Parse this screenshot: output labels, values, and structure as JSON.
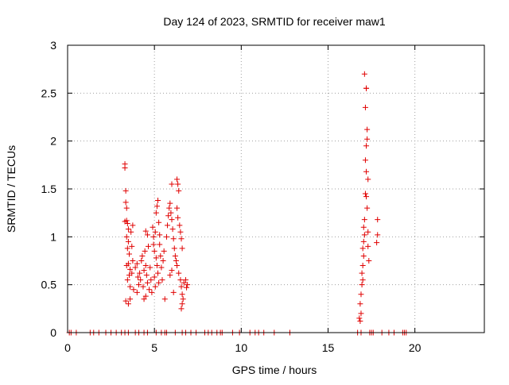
{
  "chart_data": {
    "type": "scatter",
    "title": "Day 124 of 2023, SRMTID for receiver maw1",
    "xlabel": "GPS time / hours",
    "ylabel": "SRMTID / TECUs",
    "xlim": [
      0,
      24
    ],
    "ylim": [
      0,
      3
    ],
    "xticks": [
      0,
      5,
      10,
      15,
      20
    ],
    "xtick_labels": [
      "0",
      "5",
      "10",
      "15",
      "20"
    ],
    "yticks": [
      0,
      0.5,
      1,
      1.5,
      2,
      2.5,
      3
    ],
    "ytick_labels": [
      "0",
      "0.5",
      "1",
      "1.5",
      "2",
      "2.5",
      "3"
    ],
    "grid": true,
    "marker": "+",
    "series": [
      {
        "name": "maw1",
        "color": "#e00000",
        "points": [
          [
            0.1,
            0
          ],
          [
            0.2,
            0
          ],
          [
            0.5,
            0
          ],
          [
            1.3,
            0
          ],
          [
            1.5,
            0
          ],
          [
            1.8,
            0
          ],
          [
            2.2,
            0
          ],
          [
            2.5,
            0
          ],
          [
            2.8,
            0
          ],
          [
            3.1,
            0
          ],
          [
            3.3,
            0
          ],
          [
            3.5,
            0
          ],
          [
            3.9,
            0
          ],
          [
            4.1,
            0
          ],
          [
            4.4,
            0
          ],
          [
            4.6,
            0
          ],
          [
            5.1,
            0
          ],
          [
            5.4,
            0
          ],
          [
            5.6,
            0
          ],
          [
            5.7,
            0
          ],
          [
            6.2,
            0
          ],
          [
            6.6,
            0
          ],
          [
            6.8,
            0
          ],
          [
            7.1,
            0
          ],
          [
            7.4,
            0
          ],
          [
            7.9,
            0
          ],
          [
            8.1,
            0
          ],
          [
            8.3,
            0
          ],
          [
            8.6,
            0
          ],
          [
            8.8,
            0
          ],
          [
            8.9,
            0
          ],
          [
            9.5,
            0
          ],
          [
            9.9,
            0
          ],
          [
            10.5,
            0
          ],
          [
            10.8,
            0
          ],
          [
            11.0,
            0
          ],
          [
            11.3,
            0
          ],
          [
            11.9,
            0
          ],
          [
            12.8,
            0
          ],
          [
            16.7,
            0
          ],
          [
            16.9,
            0
          ],
          [
            17.4,
            0
          ],
          [
            17.5,
            0
          ],
          [
            17.6,
            0
          ],
          [
            18.1,
            0
          ],
          [
            18.5,
            0
          ],
          [
            18.8,
            0
          ],
          [
            19.3,
            0
          ],
          [
            19.4,
            0
          ],
          [
            19.5,
            0
          ],
          [
            3.3,
            1.76
          ],
          [
            3.3,
            1.72
          ],
          [
            3.35,
            1.48
          ],
          [
            3.35,
            1.36
          ],
          [
            3.4,
            1.3
          ],
          [
            3.3,
            1.16
          ],
          [
            3.4,
            1.17
          ],
          [
            3.45,
            1.14
          ],
          [
            3.5,
            1.08
          ],
          [
            3.4,
            1.0
          ],
          [
            3.5,
            0.95
          ],
          [
            3.45,
            0.88
          ],
          [
            3.55,
            0.82
          ],
          [
            3.5,
            0.72
          ],
          [
            3.4,
            0.7
          ],
          [
            3.6,
            0.66
          ],
          [
            3.55,
            0.6
          ],
          [
            3.45,
            0.55
          ],
          [
            3.6,
            0.48
          ],
          [
            3.35,
            0.33
          ],
          [
            3.5,
            0.3
          ],
          [
            3.6,
            0.35
          ],
          [
            3.7,
            0.9
          ],
          [
            3.75,
            0.75
          ],
          [
            3.7,
            0.62
          ],
          [
            3.8,
            0.45
          ],
          [
            3.65,
            1.05
          ],
          [
            3.75,
            1.12
          ],
          [
            3.9,
            0.68
          ],
          [
            4.0,
            0.72
          ],
          [
            4.05,
            0.58
          ],
          [
            4.1,
            0.5
          ],
          [
            4.0,
            0.42
          ],
          [
            4.15,
            0.62
          ],
          [
            4.2,
            0.55
          ],
          [
            4.25,
            0.75
          ],
          [
            4.3,
            0.8
          ],
          [
            4.35,
            0.48
          ],
          [
            4.4,
            0.65
          ],
          [
            4.45,
            0.85
          ],
          [
            4.5,
            0.7
          ],
          [
            4.55,
            0.6
          ],
          [
            4.4,
            0.35
          ],
          [
            4.5,
            0.38
          ],
          [
            4.6,
            0.52
          ],
          [
            4.6,
            1.02
          ],
          [
            4.5,
            1.06
          ],
          [
            4.65,
            0.9
          ],
          [
            4.7,
            0.45
          ],
          [
            4.75,
            0.68
          ],
          [
            4.8,
            0.55
          ],
          [
            4.85,
            0.42
          ],
          [
            4.9,
            1.1
          ],
          [
            4.95,
            1.0
          ],
          [
            4.95,
            0.92
          ],
          [
            5.0,
            0.85
          ],
          [
            5.05,
            1.05
          ],
          [
            5.1,
            0.78
          ],
          [
            5.15,
            0.7
          ],
          [
            5.2,
            0.62
          ],
          [
            5.1,
            1.25
          ],
          [
            5.15,
            1.32
          ],
          [
            5.2,
            1.38
          ],
          [
            5.25,
            1.15
          ],
          [
            5.0,
            0.58
          ],
          [
            5.05,
            0.48
          ],
          [
            5.3,
            0.92
          ],
          [
            5.35,
            0.8
          ],
          [
            5.4,
            0.68
          ],
          [
            5.45,
            0.55
          ],
          [
            5.5,
            0.75
          ],
          [
            5.55,
            0.85
          ],
          [
            5.3,
            1.02
          ],
          [
            5.25,
            0.52
          ],
          [
            5.6,
            0.35
          ],
          [
            5.7,
            1.0
          ],
          [
            5.75,
            1.12
          ],
          [
            5.8,
            1.22
          ],
          [
            5.85,
            1.3
          ],
          [
            5.9,
            1.35
          ],
          [
            5.95,
            1.25
          ],
          [
            6.0,
            1.18
          ],
          [
            6.05,
            1.08
          ],
          [
            6.1,
            0.98
          ],
          [
            6.15,
            0.88
          ],
          [
            6.2,
            0.8
          ],
          [
            6.25,
            0.75
          ],
          [
            6.0,
            1.55
          ],
          [
            6.3,
            1.6
          ],
          [
            6.35,
            1.55
          ],
          [
            6.4,
            1.48
          ],
          [
            6.3,
            1.3
          ],
          [
            6.35,
            1.2
          ],
          [
            6.45,
            1.12
          ],
          [
            6.5,
            1.05
          ],
          [
            6.55,
            0.98
          ],
          [
            6.6,
            0.88
          ],
          [
            6.3,
            0.7
          ],
          [
            6.4,
            0.62
          ],
          [
            6.5,
            0.55
          ],
          [
            6.55,
            0.48
          ],
          [
            6.6,
            0.4
          ],
          [
            6.65,
            0.35
          ],
          [
            6.6,
            0.3
          ],
          [
            6.55,
            0.25
          ],
          [
            6.7,
            0.52
          ],
          [
            6.8,
            0.55
          ],
          [
            6.9,
            0.5
          ],
          [
            6.85,
            0.47
          ],
          [
            5.9,
            0.6
          ],
          [
            6.0,
            0.65
          ],
          [
            6.1,
            0.42
          ],
          [
            16.8,
            0.15
          ],
          [
            16.85,
            0.12
          ],
          [
            16.9,
            0.2
          ],
          [
            16.85,
            0.3
          ],
          [
            16.9,
            0.4
          ],
          [
            16.95,
            0.5
          ],
          [
            17.0,
            0.55
          ],
          [
            16.95,
            0.62
          ],
          [
            17.0,
            0.7
          ],
          [
            17.05,
            0.8
          ],
          [
            17.0,
            0.88
          ],
          [
            17.05,
            0.95
          ],
          [
            17.1,
            1.02
          ],
          [
            17.05,
            1.1
          ],
          [
            17.1,
            1.18
          ],
          [
            17.15,
            1.45
          ],
          [
            17.2,
            1.68
          ],
          [
            17.15,
            1.8
          ],
          [
            17.2,
            1.95
          ],
          [
            17.25,
            2.02
          ],
          [
            17.25,
            2.12
          ],
          [
            17.3,
            1.6
          ],
          [
            17.2,
            1.42
          ],
          [
            17.25,
            1.3
          ],
          [
            17.3,
            1.05
          ],
          [
            17.15,
            2.35
          ],
          [
            17.2,
            2.55
          ],
          [
            17.1,
            2.7
          ],
          [
            17.2,
            2.55
          ],
          [
            17.3,
            0.9
          ],
          [
            17.35,
            0.75
          ],
          [
            17.85,
            1.18
          ],
          [
            17.85,
            1.02
          ],
          [
            17.8,
            0.94
          ]
        ]
      }
    ]
  }
}
